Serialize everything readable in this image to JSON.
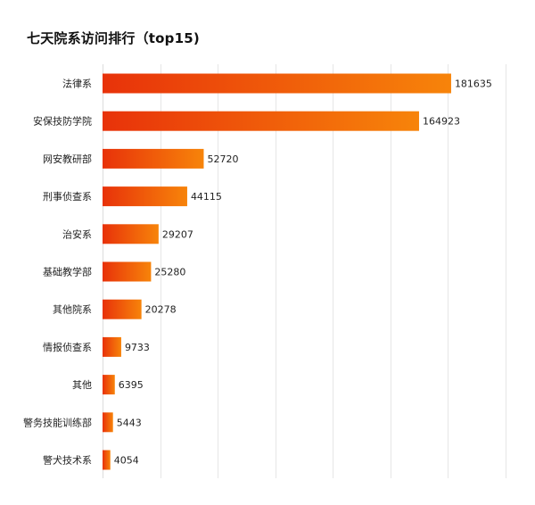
{
  "chart_data": {
    "type": "bar",
    "orientation": "horizontal",
    "title": "七天院系访问排行（top15)",
    "categories": [
      "法律系",
      "安保技防学院",
      "网安教研部",
      "刑事侦查系",
      "治安系",
      "基础教学部",
      "其他院系",
      "情报侦查系",
      "其他",
      "警务技能训练部",
      "警犬技术系"
    ],
    "values": [
      181635,
      164923,
      52720,
      44115,
      29207,
      25280,
      20278,
      9733,
      6395,
      5443,
      4054
    ],
    "xlim": [
      0,
      210000
    ],
    "x_grid_ticks": [
      0,
      30000,
      60000,
      90000,
      120000,
      150000,
      180000,
      210000
    ],
    "grid": true,
    "show_x_tick_labels": false,
    "data_labels": true,
    "bar_gradient": {
      "start": "#e8320a",
      "end": "#f7840a"
    }
  }
}
